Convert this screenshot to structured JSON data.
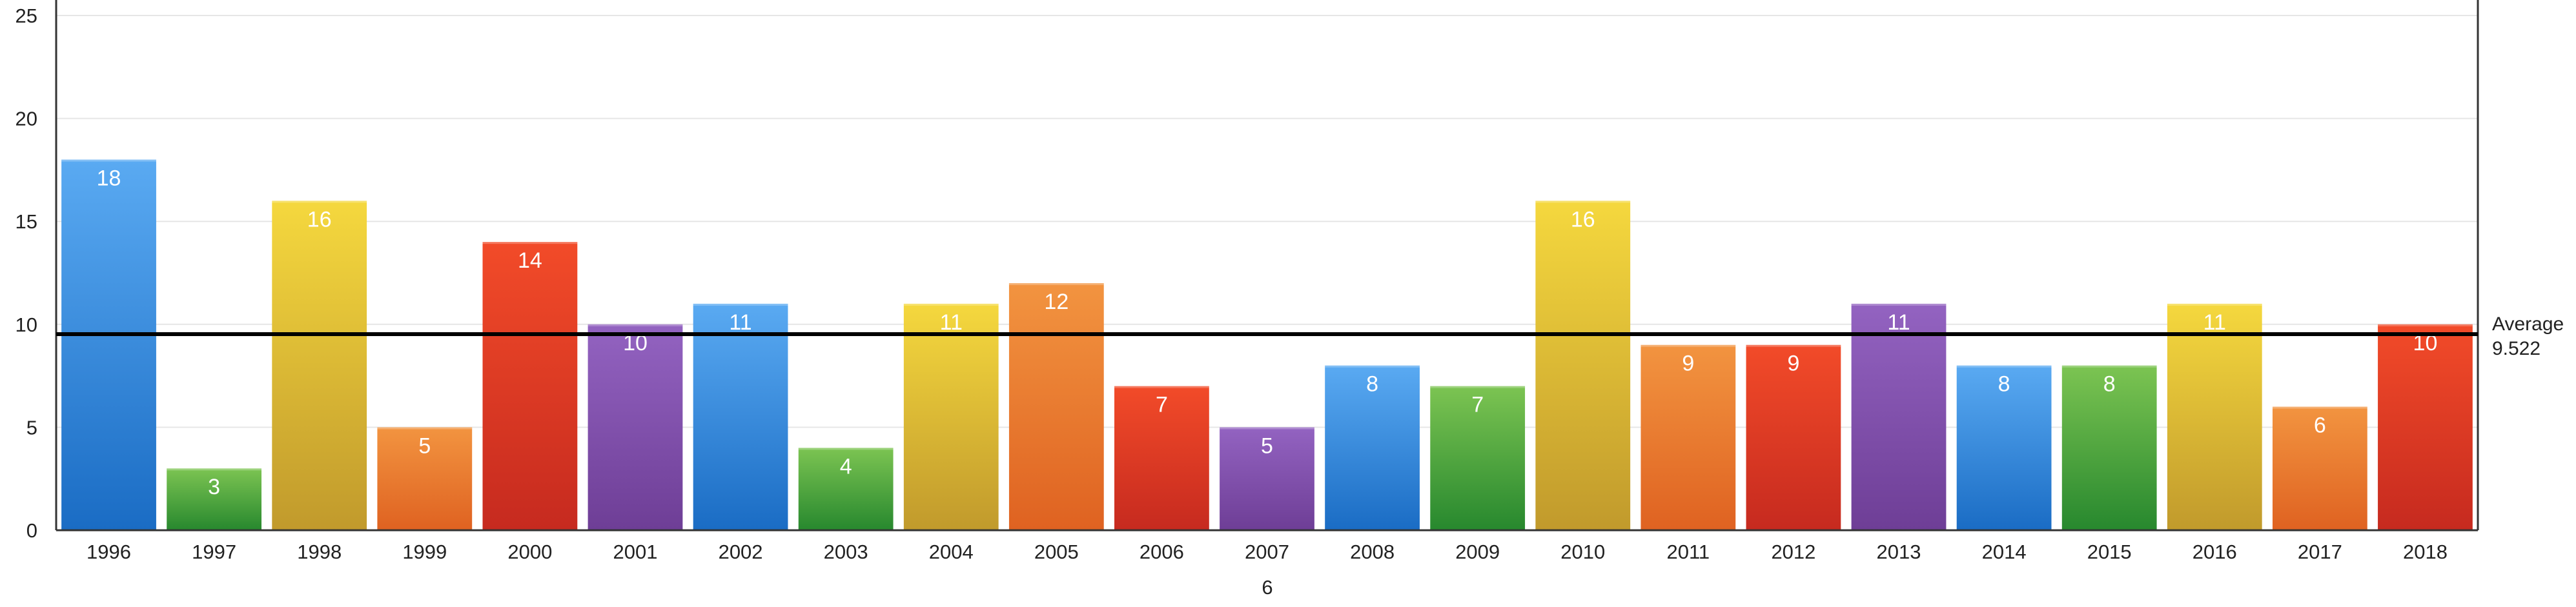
{
  "chart_data": {
    "type": "bar",
    "title": "",
    "xlabel": "6",
    "ylabel": "",
    "categories": [
      "1996",
      "1997",
      "1998",
      "1999",
      "2000",
      "2001",
      "2002",
      "2003",
      "2004",
      "2005",
      "2006",
      "2007",
      "2008",
      "2009",
      "2010",
      "2011",
      "2012",
      "2013",
      "2014",
      "2015",
      "2016",
      "2017",
      "2018"
    ],
    "values": [
      18,
      3,
      16,
      5,
      14,
      10,
      11,
      4,
      11,
      12,
      7,
      5,
      8,
      7,
      16,
      9,
      9,
      11,
      8,
      8,
      11,
      6,
      10
    ],
    "bar_colors": [
      "blue",
      "green",
      "yellow",
      "orange",
      "red",
      "purple",
      "blue",
      "green",
      "yellow",
      "orange",
      "red",
      "purple",
      "blue",
      "green",
      "yellow",
      "orange",
      "red",
      "purple",
      "blue",
      "green",
      "yellow",
      "orange",
      "red"
    ],
    "palette": {
      "blue": {
        "top": "#5aaaf2",
        "bottom": "#1a6cc4"
      },
      "green": {
        "top": "#7cc452",
        "bottom": "#27882e"
      },
      "yellow": {
        "top": "#f5d83e",
        "bottom": "#c19a2c"
      },
      "orange": {
        "top": "#f29440",
        "bottom": "#df6221"
      },
      "red": {
        "top": "#f24b29",
        "bottom": "#c62a1f"
      },
      "purple": {
        "top": "#9363c1",
        "bottom": "#6e3e96"
      }
    },
    "ylim": [
      0,
      25
    ],
    "yticks": [
      0,
      5,
      10,
      15,
      20,
      25
    ],
    "grid": true,
    "average": {
      "label": "Average",
      "value": 9.522,
      "value_text": "9.522"
    },
    "data_labels": true
  }
}
